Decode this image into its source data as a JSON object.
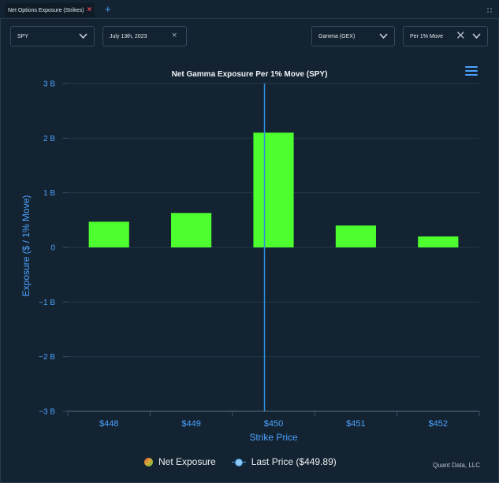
{
  "tabbar": {
    "tab_label": "Net Options Exposure (Strikes)",
    "close_glyph": "×",
    "add_glyph": "+"
  },
  "controls": {
    "ticker": "SPY",
    "date": "July 13th, 2023",
    "greek": "Gamma (GEX)",
    "unit": "Per 1% Move",
    "clear_glyph": "×",
    "clear_big_glyph": "✕"
  },
  "chart_data": {
    "type": "bar",
    "title": "Net Gamma Exposure Per 1% Move (SPY)",
    "xlabel": "Strike Price",
    "ylabel": "Exposure ($  / 1% Move)",
    "categories": [
      "$448",
      "$449",
      "$450",
      "$451",
      "$452"
    ],
    "series": [
      {
        "name": "Net Exposure",
        "values": [
          0.47,
          0.63,
          2.1,
          0.4,
          0.2
        ]
      }
    ],
    "ylim": [
      -3,
      3
    ],
    "yticks": [
      3,
      2,
      1,
      0,
      -1,
      -2,
      -3
    ],
    "ytick_labels": [
      "3 B",
      "2 B",
      "1 B",
      "0",
      "−1 B",
      "−2 B",
      "−3 B"
    ],
    "last_price": {
      "label": "Last Price ($449.89)",
      "value": 449.89
    },
    "grid": true,
    "legend_position": "bottom",
    "colors": {
      "bar": "#4dff2e",
      "last_price": "#2f8fdd",
      "grid": "#22384b",
      "axis_text": "#4aa3ff"
    }
  },
  "legend": {
    "net_exposure": "Net Exposure",
    "last_price": "Last Price ($449.89)"
  },
  "credit": "Quant Data, LLC"
}
